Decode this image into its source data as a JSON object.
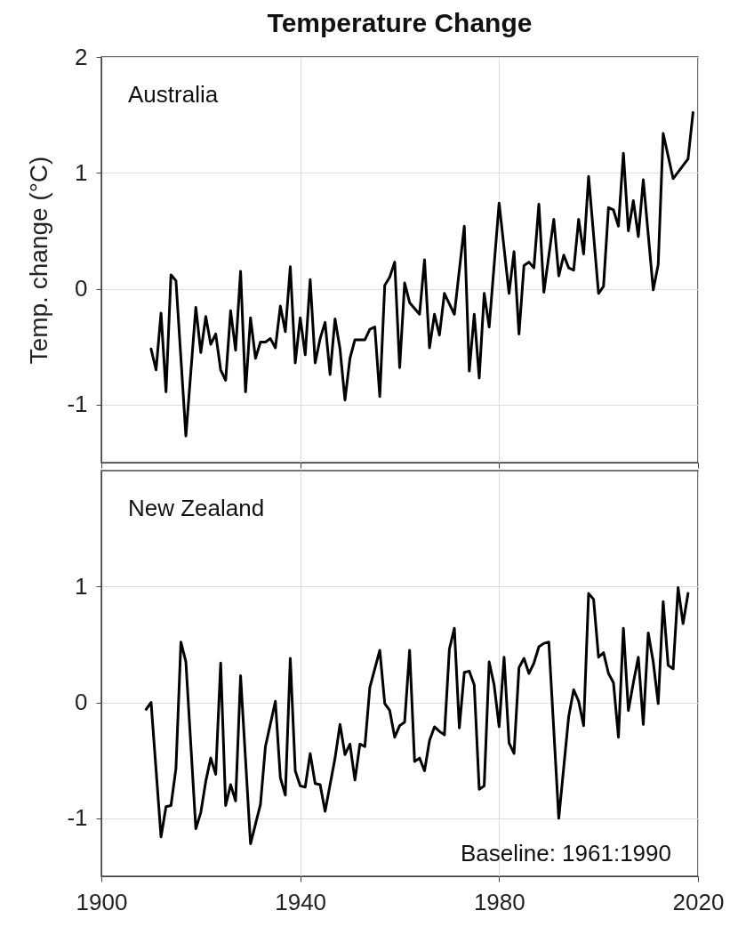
{
  "chart_data": [
    {
      "type": "line",
      "title": "Temperature Change",
      "ylabel": "Temp. change (°C)",
      "xlim": [
        1900,
        2020
      ],
      "xticks": [
        1900,
        1940,
        1980,
        2020
      ],
      "ylim": [
        -1.5,
        2
      ],
      "yticks": [
        -1,
        0,
        1,
        2
      ],
      "grid": true,
      "tick_labels": "y",
      "line_style": "solid",
      "series": [
        {
          "name": "Australia",
          "color": "#000000",
          "x": [
            1910,
            1911,
            1912,
            1913,
            1914,
            1915,
            1916,
            1917,
            1919,
            1920,
            1921,
            1922,
            1923,
            1924,
            1925,
            1926,
            1927,
            1928,
            1929,
            1930,
            1931,
            1932,
            1933,
            1934,
            1935,
            1936,
            1937,
            1938,
            1939,
            1940,
            1941,
            1942,
            1943,
            1944,
            1945,
            1946,
            1947,
            1948,
            1949,
            1950,
            1951,
            1952,
            1953,
            1954,
            1955,
            1956,
            1957,
            1958,
            1959,
            1960,
            1961,
            1962,
            1964,
            1965,
            1966,
            1967,
            1968,
            1969,
            1971,
            1973,
            1974,
            1975,
            1976,
            1977,
            1978,
            1980,
            1982,
            1983,
            1984,
            1985,
            1986,
            1987,
            1988,
            1989,
            1991,
            1992,
            1993,
            1994,
            1995,
            1996,
            1997,
            1998,
            2000,
            2001,
            2002,
            2003,
            2004,
            2005,
            2006,
            2007,
            2008,
            2009,
            2011,
            2012,
            2013,
            2015,
            2018,
            2019
          ],
          "values": [
            -0.52,
            -0.7,
            -0.21,
            -0.89,
            0.12,
            0.07,
            -0.6,
            -1.27,
            -0.16,
            -0.55,
            -0.24,
            -0.48,
            -0.39,
            -0.7,
            -0.79,
            -0.19,
            -0.53,
            0.15,
            -0.89,
            -0.25,
            -0.6,
            -0.46,
            -0.46,
            -0.43,
            -0.51,
            -0.15,
            -0.37,
            0.19,
            -0.64,
            -0.25,
            -0.57,
            0.08,
            -0.64,
            -0.43,
            -0.29,
            -0.74,
            -0.26,
            -0.52,
            -0.96,
            -0.6,
            -0.44,
            -0.44,
            -0.44,
            -0.35,
            -0.33,
            -0.93,
            0.03,
            0.1,
            0.23,
            -0.68,
            0.05,
            -0.12,
            -0.22,
            0.25,
            -0.51,
            -0.22,
            -0.4,
            -0.04,
            -0.22,
            0.54,
            -0.71,
            -0.22,
            -0.77,
            -0.04,
            -0.33,
            0.74,
            -0.04,
            0.32,
            -0.39,
            0.2,
            0.23,
            0.18,
            0.73,
            -0.03,
            0.6,
            0.11,
            0.29,
            0.18,
            0.16,
            0.6,
            0.3,
            0.97,
            -0.04,
            0.02,
            0.7,
            0.68,
            0.54,
            1.17,
            0.5,
            0.76,
            0.45,
            0.94,
            -0.01,
            0.21,
            1.34,
            0.95,
            1.12,
            1.52
          ]
        }
      ]
    },
    {
      "type": "line",
      "xlim": [
        1900,
        2020
      ],
      "xticks": [
        1900,
        1940,
        1980,
        2020
      ],
      "ylim": [
        -1.5,
        2
      ],
      "yticks": [
        -1,
        0,
        1
      ],
      "grid": true,
      "line_style": "solid",
      "annotations": [
        "Baseline: 1961:1990"
      ],
      "series": [
        {
          "name": "New Zealand",
          "color": "#000000",
          "x": [
            1909,
            1910,
            1912,
            1913,
            1914,
            1915,
            1916,
            1917,
            1919,
            1920,
            1921,
            1922,
            1923,
            1924,
            1925,
            1926,
            1927,
            1928,
            1930,
            1931,
            1932,
            1933,
            1935,
            1936,
            1937,
            1938,
            1939,
            1940,
            1941,
            1942,
            1943,
            1944,
            1945,
            1947,
            1948,
            1949,
            1950,
            1951,
            1952,
            1953,
            1954,
            1956,
            1957,
            1958,
            1959,
            1960,
            1961,
            1962,
            1963,
            1964,
            1965,
            1966,
            1967,
            1968,
            1969,
            1970,
            1971,
            1972,
            1973,
            1974,
            1975,
            1976,
            1977,
            1978,
            1979,
            1980,
            1981,
            1982,
            1983,
            1984,
            1985,
            1986,
            1987,
            1988,
            1989,
            1990,
            1992,
            1994,
            1995,
            1996,
            1997,
            1998,
            1999,
            2000,
            2001,
            2002,
            2003,
            2004,
            2005,
            2006,
            2007,
            2008,
            2009,
            2010,
            2011,
            2012,
            2013,
            2014,
            2015,
            2016,
            2017,
            2018
          ],
          "values": [
            -0.06,
            0.0,
            -1.16,
            -0.9,
            -0.89,
            -0.57,
            0.52,
            0.35,
            -1.09,
            -0.95,
            -0.68,
            -0.48,
            -0.62,
            0.34,
            -0.89,
            -0.71,
            -0.85,
            0.23,
            -1.22,
            -1.05,
            -0.88,
            -0.38,
            0.01,
            -0.65,
            -0.8,
            0.38,
            -0.59,
            -0.72,
            -0.73,
            -0.44,
            -0.7,
            -0.71,
            -0.94,
            -0.48,
            -0.19,
            -0.45,
            -0.36,
            -0.67,
            -0.36,
            -0.38,
            0.13,
            0.45,
            -0.01,
            -0.07,
            -0.3,
            -0.2,
            -0.17,
            0.45,
            -0.51,
            -0.48,
            -0.59,
            -0.33,
            -0.21,
            -0.25,
            -0.28,
            0.46,
            0.64,
            -0.22,
            0.26,
            0.27,
            0.15,
            -0.75,
            -0.72,
            0.35,
            0.15,
            -0.21,
            0.39,
            -0.35,
            -0.44,
            0.3,
            0.38,
            0.25,
            0.34,
            0.48,
            0.51,
            0.52,
            -1.0,
            -0.12,
            0.11,
            0.01,
            -0.2,
            0.94,
            0.89,
            0.39,
            0.43,
            0.25,
            0.17,
            -0.3,
            0.64,
            -0.07,
            0.17,
            0.39,
            -0.19,
            0.6,
            0.35,
            -0.01,
            0.87,
            0.32,
            0.29,
            0.99,
            0.68,
            0.94
          ]
        }
      ]
    }
  ]
}
